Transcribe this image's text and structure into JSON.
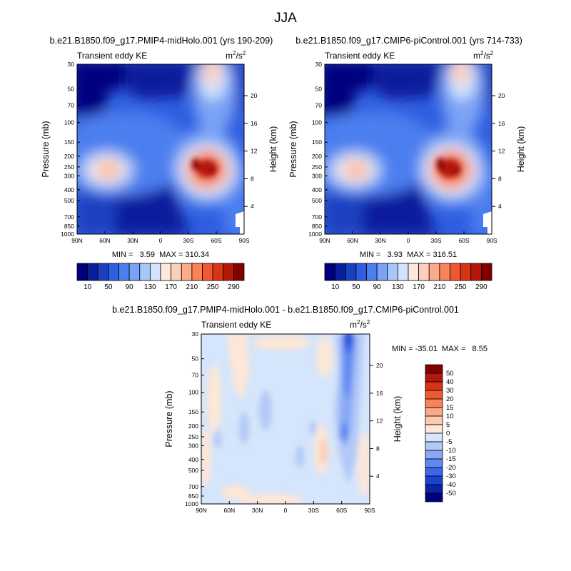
{
  "figure": {
    "title": "JJA",
    "diff_title": "b.e21.B1850.f09_g17.PMIP4-midHolo.001 - b.e21.B1850.f09_g17.CMIP6-piControl.001"
  },
  "colors": {
    "upper_scale": [
      "#00007f",
      "#0a1e9c",
      "#1a3fc0",
      "#2f5ee0",
      "#4b7eef",
      "#7aa2f5",
      "#a8c6fa",
      "#d2e4fd",
      "#fde9dc",
      "#fcd0bc",
      "#fbab8a",
      "#f7825c",
      "#f05830",
      "#d93515",
      "#b4180a",
      "#820000"
    ],
    "diff_scale": [
      "#00007f",
      "#0a22a8",
      "#1a44d0",
      "#3b66ea",
      "#5f88f0",
      "#89a9f4",
      "#b2c9f8",
      "#d5e5fb",
      "#fde7d7",
      "#fccab0",
      "#fba886",
      "#f7825c",
      "#f05830",
      "#d43413",
      "#b4180a",
      "#820000"
    ]
  },
  "panels": [
    {
      "id": "midHolo",
      "title": "b.e21.B1850.f09_g17.PMIP4-midHolo.001 (yrs 190-209)",
      "left_string": "Transient eddy KE",
      "units": {
        "base": "m",
        "sup1": "2",
        "mid": "/s",
        "sup2": "2"
      },
      "stats": "MIN =   3.59  MAX = 310.34"
    },
    {
      "id": "piControl",
      "title": "b.e21.B1850.f09_g17.CMIP6-piControl.001 (yrs 714-733)",
      "left_string": "Transient eddy KE",
      "units": {
        "base": "m",
        "sup1": "2",
        "mid": "/s",
        "sup2": "2"
      },
      "stats": "MIN =   3.93  MAX = 316.51"
    },
    {
      "id": "difference",
      "title": "",
      "left_string": "Transient eddy KE",
      "units": {
        "base": "m",
        "sup1": "2",
        "mid": "/s",
        "sup2": "2"
      },
      "stats": "MIN = -35.01  MAX =   8.55"
    }
  ],
  "axes": {
    "ylabel": "Pressure (mb)",
    "y2label": "Height (km)",
    "y_ticks": [
      "30",
      "50",
      "70",
      "100",
      "150",
      "200",
      "250",
      "300",
      "400",
      "500",
      "700",
      "850",
      "1000"
    ],
    "y_tick_values": [
      30,
      50,
      70,
      100,
      150,
      200,
      250,
      300,
      400,
      500,
      700,
      850,
      1000
    ],
    "height_ticks": [
      "4",
      "8",
      "12",
      "16",
      "20"
    ],
    "height_tick_values": [
      4,
      8,
      12,
      16,
      20
    ],
    "x_ticks": [
      "90N",
      "60N",
      "30N",
      "0",
      "30S",
      "60S",
      "90S"
    ],
    "x_tick_values": [
      90,
      60,
      30,
      0,
      -30,
      -60,
      -90
    ]
  },
  "chart_data": [
    {
      "type": "heatmap",
      "title": "b.e21.B1850.f09_g17.PMIP4-midHolo.001 (yrs 190-209)",
      "xlabel": "",
      "ylabel": "Pressure (mb)",
      "x_range": [
        90,
        -90
      ],
      "y_range": [
        30,
        1000
      ],
      "y_scale": "log",
      "min": 3.59,
      "max": 310.34,
      "levels": [
        10,
        30,
        50,
        70,
        90,
        110,
        130,
        150,
        170,
        190,
        210,
        230,
        250,
        270,
        290
      ],
      "colorbar_labels": [
        "10",
        "50",
        "90",
        "130",
        "170",
        "210",
        "250",
        "290"
      ],
      "features": [
        {
          "name": "nh_jet",
          "lat": 45,
          "p": 240,
          "value": 150
        },
        {
          "name": "sh_jet",
          "lat": -43,
          "p": 270,
          "value": 300
        },
        {
          "name": "strat_jet",
          "lat": -55,
          "p": 30,
          "value": 170
        }
      ]
    },
    {
      "type": "heatmap",
      "title": "b.e21.B1850.f09_g17.CMIP6-piControl.001 (yrs 714-733)",
      "xlabel": "",
      "ylabel": "Pressure (mb)",
      "x_range": [
        90,
        -90
      ],
      "y_range": [
        30,
        1000
      ],
      "y_scale": "log",
      "min": 3.93,
      "max": 316.51,
      "levels": [
        10,
        30,
        50,
        70,
        90,
        110,
        130,
        150,
        170,
        190,
        210,
        230,
        250,
        270,
        290
      ],
      "colorbar_labels": [
        "10",
        "50",
        "90",
        "130",
        "170",
        "210",
        "250",
        "290"
      ],
      "features": [
        {
          "name": "nh_jet",
          "lat": 45,
          "p": 240,
          "value": 150
        },
        {
          "name": "sh_jet",
          "lat": -40,
          "p": 260,
          "value": 310
        },
        {
          "name": "strat_jet",
          "lat": -55,
          "p": 30,
          "value": 180
        }
      ]
    },
    {
      "type": "heatmap",
      "title": "b.e21.B1850.f09_g17.PMIP4-midHolo.001 - b.e21.B1850.f09_g17.CMIP6-piControl.001",
      "xlabel": "",
      "ylabel": "Pressure (mb)",
      "x_range": [
        90,
        -90
      ],
      "y_range": [
        30,
        1000
      ],
      "y_scale": "log",
      "min": -35.01,
      "max": 8.55,
      "levels": [
        -50,
        -40,
        -30,
        -20,
        -15,
        -10,
        -5,
        0,
        5,
        10,
        15,
        20,
        30,
        40,
        50
      ],
      "colorbar_labels": [
        "50",
        "40",
        "30",
        "20",
        "15",
        "10",
        "5",
        "0",
        "-5",
        "-10",
        "-15",
        "-20",
        "-30",
        "-40",
        "-50"
      ],
      "features": [
        {
          "name": "sh_strat_decrease",
          "lat": -60,
          "p": 40,
          "value": -35
        },
        {
          "name": "sh_upper_decrease",
          "lat": -55,
          "p": 200,
          "value": -18
        },
        {
          "name": "sh_positive",
          "lat": -35,
          "p": 320,
          "value": 8
        },
        {
          "name": "nh_negative",
          "lat": 40,
          "p": 150,
          "value": -8
        }
      ]
    }
  ]
}
